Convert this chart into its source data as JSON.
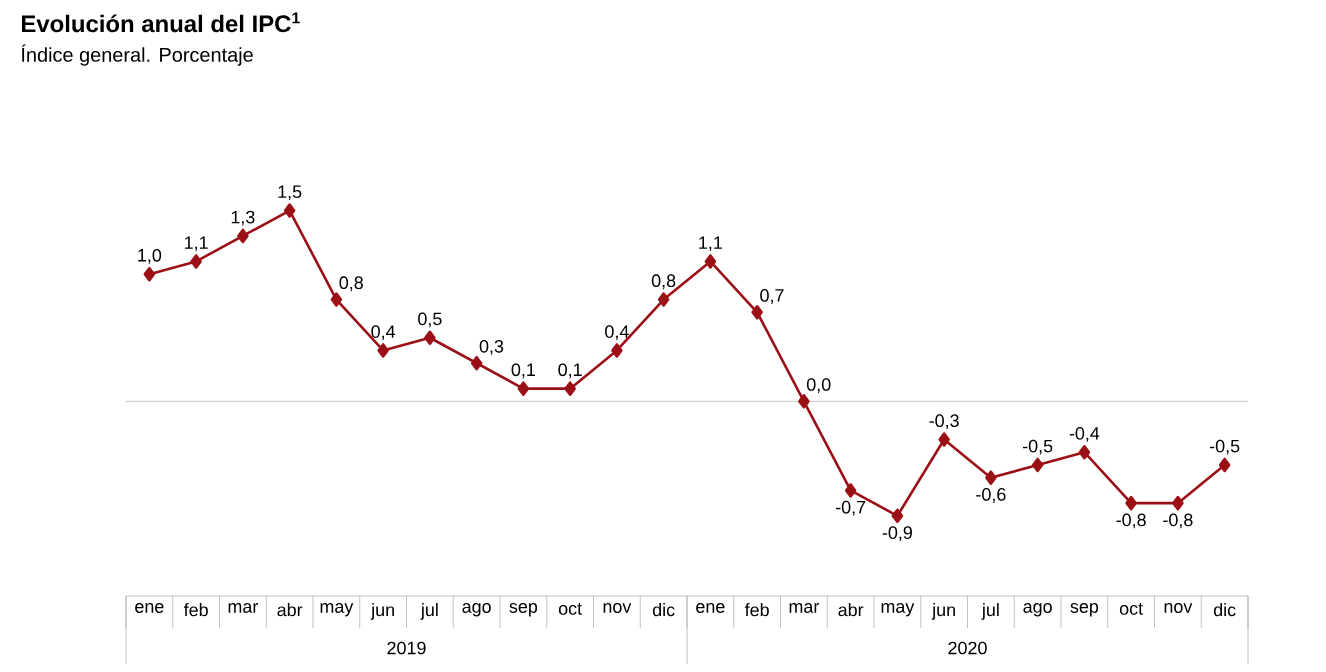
{
  "chart_data": {
    "type": "line",
    "title": "Evolución anual del IPC$^{1}$",
    "subtitle": "Índice general. Porcentaje",
    "categories": [
      "ene",
      "feb",
      "mar",
      "abr",
      "may",
      "jun",
      "jul",
      "ago",
      "sep",
      "oct",
      "nov",
      "dic",
      "ene",
      "feb",
      "mar",
      "abr",
      "may",
      "jun",
      "jul",
      "ago",
      "sep",
      "oct",
      "nov",
      "dic"
    ],
    "values": [
      1.0,
      1.1,
      1.3,
      1.5,
      0.8,
      0.4,
      0.5,
      0.3,
      0.1,
      0.1,
      0.4,
      0.8,
      1.1,
      0.7,
      0.0,
      -0.7,
      -0.9,
      -0.3,
      -0.6,
      -0.5,
      -0.4,
      -0.8,
      -0.8,
      -0.5
    ],
    "value_labels": [
      "1,0",
      "1,1",
      "1,3",
      "1,5",
      "0,8",
      "0,4",
      "0,5",
      "0,3",
      "0,1",
      "0,1",
      "0,4",
      "0,8",
      "1,1",
      "0,7",
      "0,0",
      "-0,7",
      "-0,9",
      "-0,3",
      "-0,6",
      "-0,5",
      "-0,4",
      "-0,8",
      "-0,8",
      "-0,5"
    ],
    "color": "#9b1016",
    "marker": "diamond",
    "line_style": "solid",
    "annotations": [
      "2019",
      "2020"
    ]
  }
}
